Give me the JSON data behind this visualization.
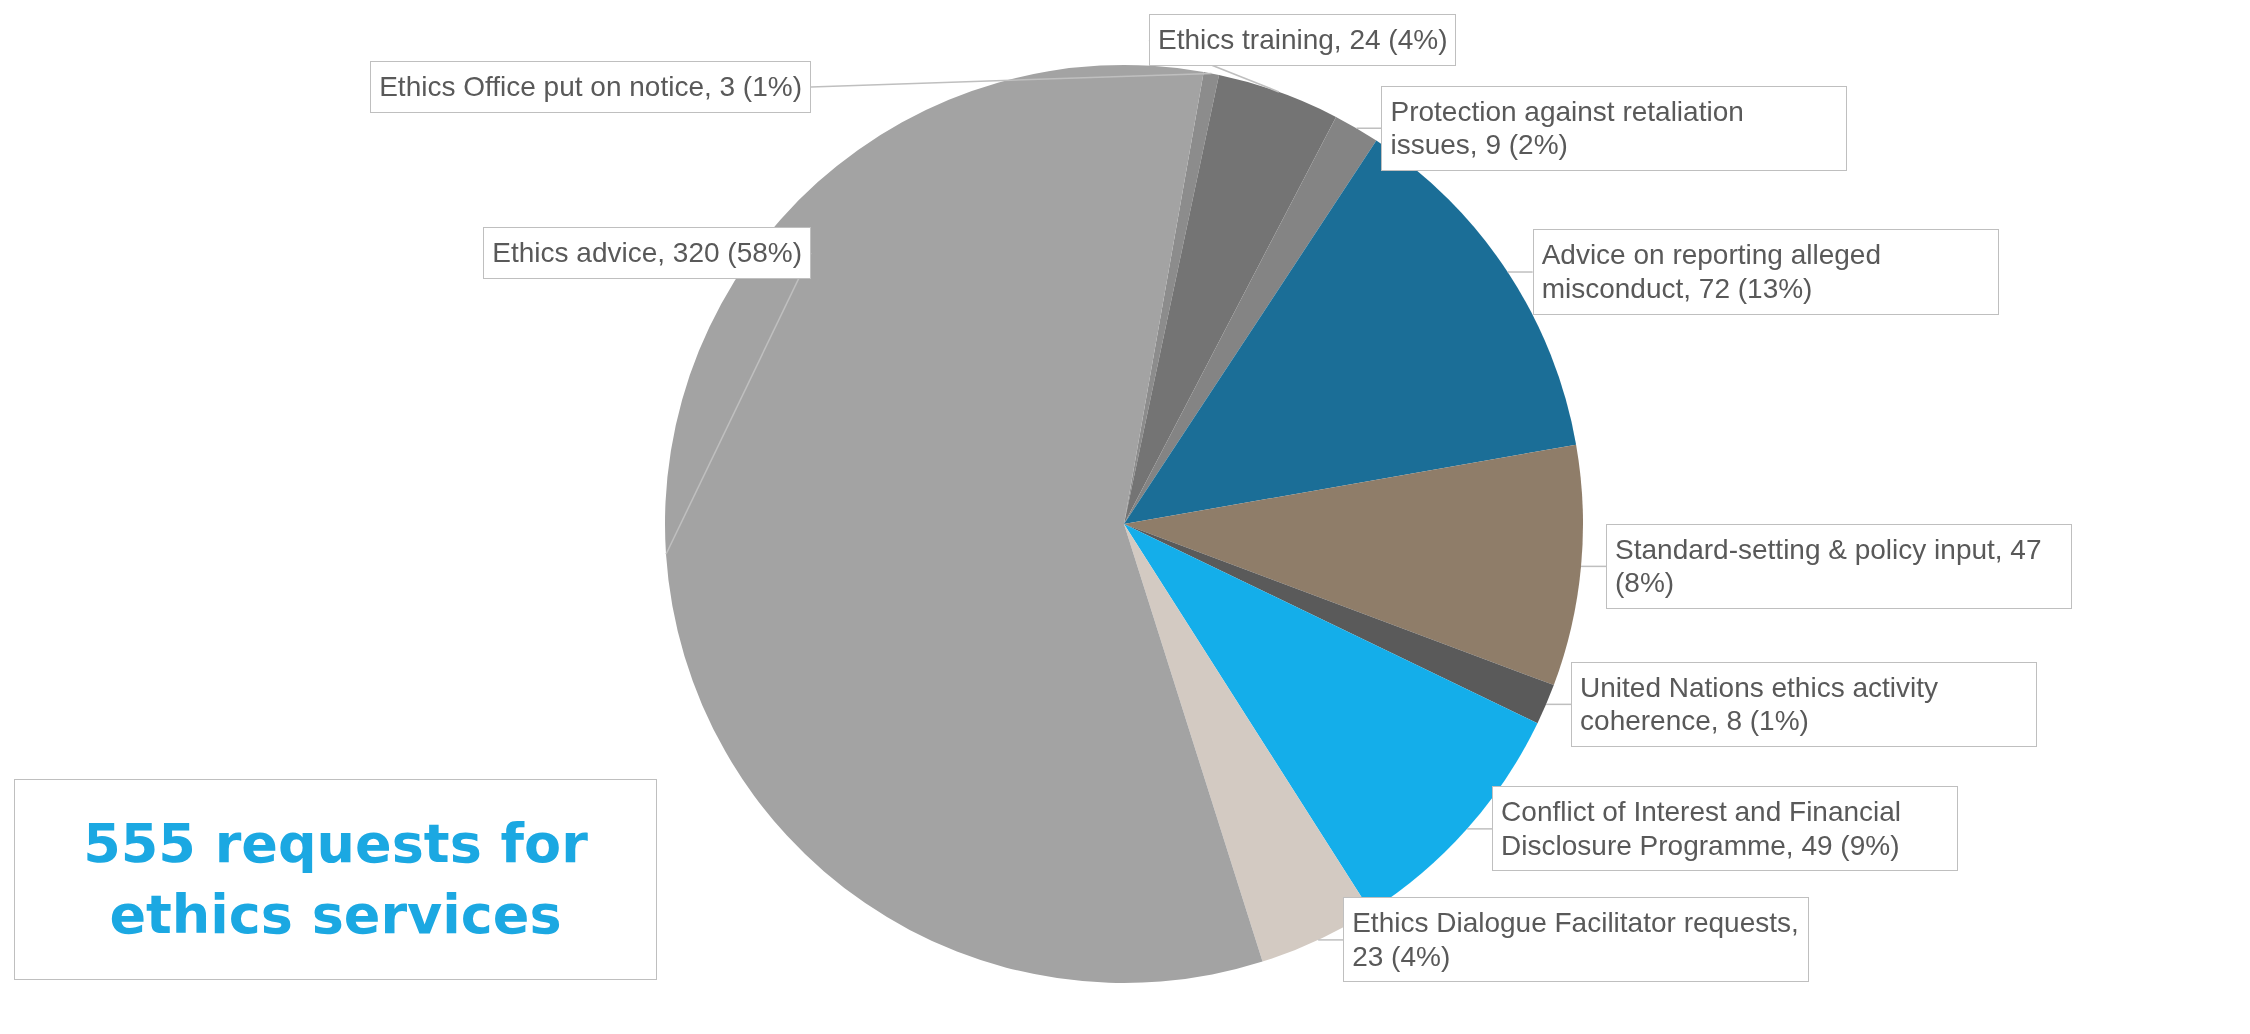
{
  "chart_data": {
    "type": "pie",
    "categories": [
      "Ethics Office put on notice, 3 (1%)",
      "Ethics training, 24 (4%)",
      "Protection against retaliation issues, 9 (2%)",
      "Advice on reporting alleged misconduct, 72 (13%)",
      "Standard-setting & policy input, 47 (8%)",
      "United Nations ethics activity coherence, 8 (1%)",
      "Conflict of Interest and Financial Disclosure Programme, 49 (9%)",
      "Ethics Dialogue Facilitator requests, 23 (4%)",
      "Ethics advice, 320 (58%)"
    ],
    "values": [
      3,
      24,
      9,
      72,
      47,
      8,
      49,
      23,
      320
    ],
    "colors": [
      "#8c8c8c",
      "#747474",
      "#848484",
      "#1b6e97",
      "#8f7d69",
      "#5a5a5a",
      "#14aeea",
      "#d3cac2",
      "#a3a3a3"
    ],
    "annotations": [
      "555 requests for ethics services"
    ]
  }
}
